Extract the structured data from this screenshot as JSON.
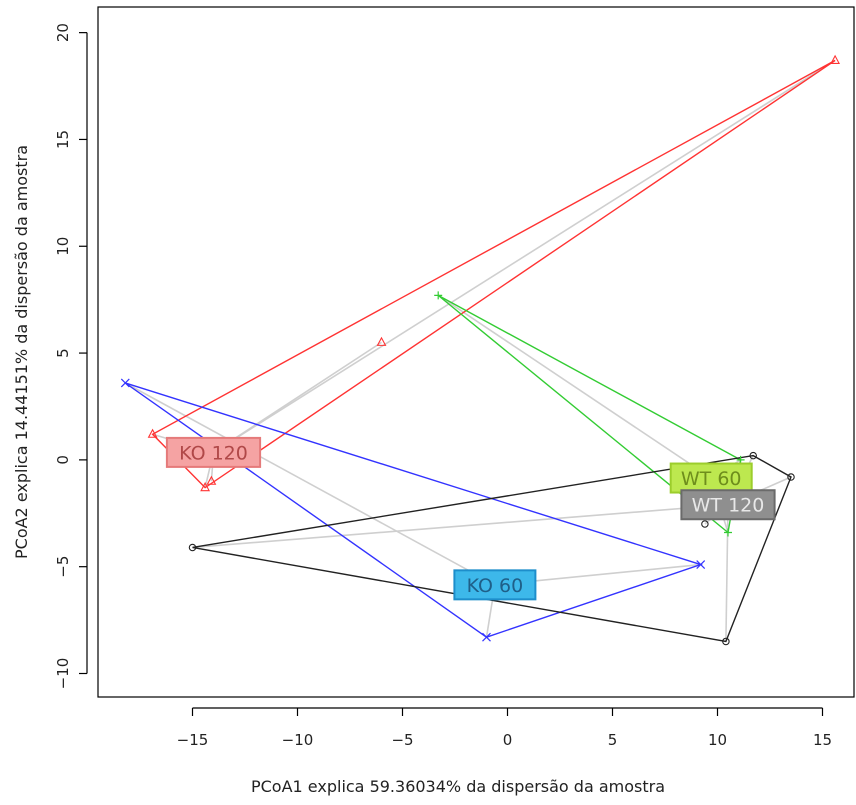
{
  "chart_data": {
    "type": "scatter",
    "xlabel": "PCoA1 explica 59.36034% da dispersão da amostra",
    "ylabel": "PCoA2 explica 14.44151% da dispersão da amostra",
    "xlim": [
      -19.5,
      16.5
    ],
    "ylim": [
      -11.1,
      21.2
    ],
    "x_ticks": [
      -15,
      -10,
      -5,
      0,
      5,
      10,
      15
    ],
    "y_ticks": [
      -10,
      -5,
      0,
      5,
      10,
      15,
      20
    ],
    "grid": false,
    "legend": "none",
    "series": [
      {
        "name": "KO 120",
        "color": "#ff3333",
        "marker": "triangle",
        "points": [
          [
            15.6,
            18.7
          ],
          [
            -6.0,
            5.5
          ],
          [
            -16.9,
            1.2
          ],
          [
            -14.4,
            -1.3
          ],
          [
            -14.1,
            -1.0
          ]
        ],
        "hull": [
          [
            15.6,
            18.7
          ],
          [
            -16.9,
            1.2
          ],
          [
            -14.4,
            -1.3
          ],
          [
            15.6,
            18.7
          ]
        ],
        "label": {
          "text": "KO 120",
          "at": [
            -14.0,
            0.35
          ],
          "fill": "#f5a3a3",
          "stroke": "#e57a7a",
          "color": "#b04848"
        }
      },
      {
        "name": "KO 60",
        "color": "#3333ff",
        "marker": "x",
        "points": [
          [
            -18.2,
            3.6
          ],
          [
            9.2,
            -4.9
          ],
          [
            -1.0,
            -8.3
          ]
        ],
        "hull": [
          [
            -18.2,
            3.6
          ],
          [
            9.2,
            -4.9
          ],
          [
            -1.0,
            -8.3
          ],
          [
            -18.2,
            3.6
          ]
        ],
        "label": {
          "text": "KO 60",
          "at": [
            -0.6,
            -5.85
          ],
          "fill": "#3db8ea",
          "stroke": "#1d8ecb",
          "color": "#1f5f88"
        }
      },
      {
        "name": "WT 60",
        "color": "#33cc33",
        "marker": "plus",
        "points": [
          [
            -3.3,
            7.7
          ],
          [
            11.1,
            0.0
          ],
          [
            10.5,
            -3.4
          ]
        ],
        "hull": [
          [
            -3.3,
            7.7
          ],
          [
            11.1,
            0.0
          ],
          [
            10.5,
            -3.4
          ],
          [
            -3.3,
            7.7
          ]
        ],
        "label": {
          "text": "WT 60",
          "at": [
            9.7,
            -0.85
          ],
          "fill": "#bde84f",
          "stroke": "#9ccd2c",
          "color": "#6e8e1c"
        }
      },
      {
        "name": "WT 120",
        "color": "#222222",
        "marker": "circle",
        "points": [
          [
            -15.0,
            -4.1
          ],
          [
            11.7,
            0.2
          ],
          [
            13.5,
            -0.8
          ],
          [
            10.4,
            -8.5
          ],
          [
            9.4,
            -3.0
          ]
        ],
        "hull": [
          [
            -15.0,
            -4.1
          ],
          [
            11.7,
            0.2
          ],
          [
            13.5,
            -0.8
          ],
          [
            10.4,
            -8.5
          ],
          [
            -15.0,
            -4.1
          ]
        ],
        "label": {
          "text": "WT 120",
          "at": [
            10.5,
            -2.1
          ],
          "fill": "#8f8f8f",
          "stroke": "#6a6a6a",
          "color": "#e8e8e8"
        }
      }
    ],
    "spokes": {
      "color": "#cfcfcf",
      "lines": [
        [
          [
            -14.0,
            0.35
          ],
          [
            15.6,
            18.7
          ]
        ],
        [
          [
            -14.0,
            0.35
          ],
          [
            -6.0,
            5.5
          ]
        ],
        [
          [
            -14.0,
            0.35
          ],
          [
            -16.9,
            1.2
          ]
        ],
        [
          [
            -14.0,
            0.35
          ],
          [
            -14.4,
            -1.3
          ]
        ],
        [
          [
            -14.0,
            0.35
          ],
          [
            -14.1,
            -1.0
          ]
        ],
        [
          [
            -0.6,
            -5.85
          ],
          [
            -18.2,
            3.6
          ]
        ],
        [
          [
            -0.6,
            -5.85
          ],
          [
            9.2,
            -4.9
          ]
        ],
        [
          [
            -0.6,
            -5.85
          ],
          [
            -1.0,
            -8.3
          ]
        ],
        [
          [
            9.7,
            -0.85
          ],
          [
            -3.3,
            7.7
          ]
        ],
        [
          [
            9.7,
            -0.85
          ],
          [
            11.1,
            0.0
          ]
        ],
        [
          [
            9.7,
            -0.85
          ],
          [
            10.5,
            -3.4
          ]
        ],
        [
          [
            10.5,
            -2.1
          ],
          [
            -15.0,
            -4.1
          ]
        ],
        [
          [
            10.5,
            -2.1
          ],
          [
            11.7,
            0.2
          ]
        ],
        [
          [
            10.5,
            -2.1
          ],
          [
            13.5,
            -0.8
          ]
        ],
        [
          [
            10.5,
            -2.1
          ],
          [
            10.4,
            -8.5
          ]
        ],
        [
          [
            10.5,
            -2.1
          ],
          [
            9.4,
            -3.0
          ]
        ]
      ]
    }
  }
}
